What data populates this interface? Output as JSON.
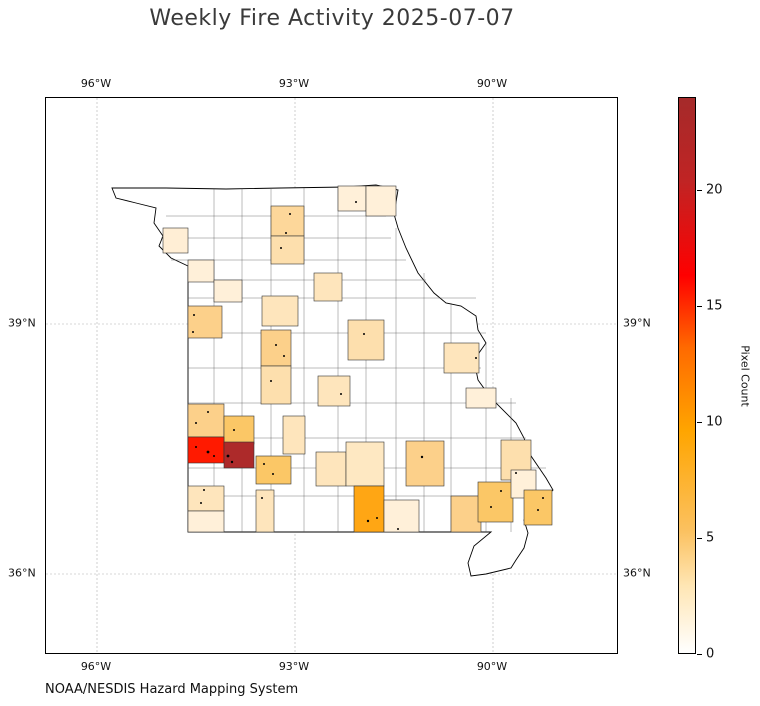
{
  "title": "Weekly Fire Activity 2025-07-07",
  "credit": "NOAA/NESDIS Hazard Mapping System",
  "colorbar": {
    "label": "Pixel Count",
    "ticks": [
      "0",
      "5",
      "10",
      "15",
      "20"
    ],
    "tick_values": [
      0,
      5,
      10,
      15,
      20
    ],
    "max": 24,
    "colors": [
      "#ffffff",
      "#ffe6b5",
      "#fbc160",
      "#ffa500",
      "#ff0000",
      "#a52a2a"
    ]
  },
  "longitude_ticks": [
    "96°W",
    "93°W",
    "90°W"
  ],
  "latitude_ticks": [
    "39°N",
    "36°N"
  ],
  "map": {
    "region": "Missouri counties",
    "extent": {
      "lon": [
        -96.75,
        -88.05
      ],
      "lat": [
        35.0,
        41.7
      ]
    },
    "gridlines": true,
    "highlighted_counties": [
      {
        "id": "county-a",
        "count": 1
      },
      {
        "id": "county-b",
        "count": 3
      },
      {
        "id": "county-c",
        "count": 1
      },
      {
        "id": "county-d",
        "count": 1
      },
      {
        "id": "county-e",
        "count": 3
      },
      {
        "id": "county-f",
        "count": 1
      },
      {
        "id": "county-g",
        "count": 1
      },
      {
        "id": "county-h",
        "count": 2
      },
      {
        "id": "county-i",
        "count": 2
      },
      {
        "id": "county-j",
        "count": 4
      },
      {
        "id": "county-k",
        "count": 3
      },
      {
        "id": "county-l",
        "count": 4
      },
      {
        "id": "county-m",
        "count": 2
      },
      {
        "id": "county-n",
        "count": 3
      },
      {
        "id": "county-o",
        "count": 2
      },
      {
        "id": "county-p",
        "count": 1
      },
      {
        "id": "county-q",
        "count": 4
      },
      {
        "id": "county-r",
        "count": 5
      },
      {
        "id": "county-s",
        "count": 17
      },
      {
        "id": "county-t",
        "count": 23
      },
      {
        "id": "county-u",
        "count": 2
      },
      {
        "id": "county-v",
        "count": 5
      },
      {
        "id": "county-w",
        "count": 2
      },
      {
        "id": "county-x",
        "count": 3
      },
      {
        "id": "county-y",
        "count": 2
      },
      {
        "id": "county-z",
        "count": 8
      },
      {
        "id": "county-aa",
        "count": 1
      },
      {
        "id": "county-ab",
        "count": 4
      },
      {
        "id": "county-ac",
        "count": 4
      },
      {
        "id": "county-ad",
        "count": 3
      },
      {
        "id": "county-ae",
        "count": 5
      },
      {
        "id": "county-af",
        "count": 1
      },
      {
        "id": "county-ag",
        "count": 5
      },
      {
        "id": "county-ah",
        "count": 1
      },
      {
        "id": "county-ai",
        "count": 2
      }
    ]
  }
}
